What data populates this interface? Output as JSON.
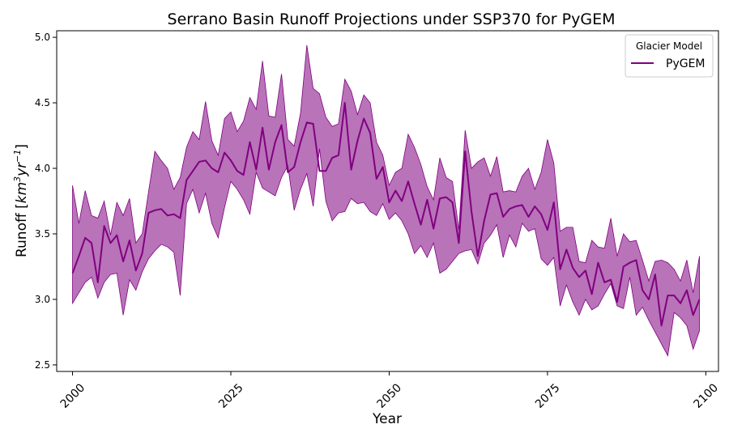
{
  "chart_data": {
    "type": "line",
    "title": "Serrano Basin Runoff Projections under SSP370 for PyGEM",
    "xlabel": "Year",
    "ylabel": "Runoff [km³yr⁻¹]",
    "ylabel_parts": {
      "text": "Runoff [",
      "unit_base": "km",
      "unit_sup1": "3",
      "unit_mid": "yr",
      "unit_sup2": "−1",
      "close": "]"
    },
    "xlim": [
      1997.5,
      2102
    ],
    "ylim": [
      2.45,
      5.05
    ],
    "xticks": [
      2000,
      2025,
      2050,
      2075,
      2100
    ],
    "xtick_labels": [
      "2000",
      "2025",
      "2050",
      "2075",
      "2100"
    ],
    "yticks": [
      2.5,
      3.0,
      3.5,
      4.0,
      4.5,
      5.0
    ],
    "ytick_labels": [
      "2.5",
      "3.0",
      "3.5",
      "4.0",
      "4.5",
      "5.0"
    ],
    "grid": false,
    "legend": {
      "title": "Glacier Model",
      "placement": "top-right",
      "entries": [
        "PyGEM"
      ]
    },
    "colors": {
      "line": "#800080",
      "band": "#800080",
      "band_opacity": 0.55
    },
    "x": [
      2000,
      2001,
      2002,
      2003,
      2004,
      2005,
      2006,
      2007,
      2008,
      2009,
      2010,
      2011,
      2012,
      2013,
      2014,
      2015,
      2016,
      2017,
      2018,
      2019,
      2020,
      2021,
      2022,
      2023,
      2024,
      2025,
      2026,
      2027,
      2028,
      2029,
      2030,
      2031,
      2032,
      2033,
      2034,
      2035,
      2036,
      2037,
      2038,
      2039,
      2040,
      2041,
      2042,
      2043,
      2044,
      2045,
      2046,
      2047,
      2048,
      2049,
      2050,
      2051,
      2052,
      2053,
      2054,
      2055,
      2056,
      2057,
      2058,
      2059,
      2060,
      2061,
      2062,
      2063,
      2064,
      2065,
      2066,
      2067,
      2068,
      2069,
      2070,
      2071,
      2072,
      2073,
      2074,
      2075,
      2076,
      2077,
      2078,
      2079,
      2080,
      2081,
      2082,
      2083,
      2084,
      2085,
      2086,
      2087,
      2088,
      2089,
      2090,
      2091,
      2092,
      2093,
      2094,
      2095,
      2096,
      2097,
      2098,
      2099
    ],
    "series": [
      {
        "name": "PyGEM",
        "mean": [
          3.2,
          3.33,
          3.47,
          3.43,
          3.13,
          3.56,
          3.43,
          3.49,
          3.29,
          3.45,
          3.22,
          3.35,
          3.66,
          3.68,
          3.69,
          3.64,
          3.65,
          3.62,
          3.91,
          3.98,
          4.05,
          4.06,
          4.0,
          3.97,
          4.12,
          4.06,
          3.98,
          3.95,
          4.2,
          3.99,
          4.31,
          3.99,
          4.2,
          4.33,
          3.97,
          4.01,
          4.2,
          4.35,
          4.34,
          3.98,
          3.98,
          4.08,
          4.1,
          4.5,
          3.99,
          4.21,
          4.38,
          4.27,
          3.92,
          4.01,
          3.74,
          3.83,
          3.75,
          3.9,
          3.73,
          3.57,
          3.76,
          3.54,
          3.77,
          3.78,
          3.74,
          3.43,
          4.13,
          3.67,
          3.33,
          3.6,
          3.8,
          3.81,
          3.63,
          3.69,
          3.71,
          3.72,
          3.63,
          3.71,
          3.65,
          3.53,
          3.74,
          3.23,
          3.38,
          3.24,
          3.17,
          3.22,
          3.04,
          3.28,
          3.13,
          3.15,
          2.98,
          3.25,
          3.28,
          3.3,
          3.07,
          3.0,
          3.19,
          2.8,
          3.03,
          3.03,
          2.97,
          3.07,
          2.88,
          3.0
        ],
        "upper": [
          3.87,
          3.58,
          3.83,
          3.64,
          3.62,
          3.75,
          3.49,
          3.74,
          3.64,
          3.77,
          3.43,
          3.5,
          3.82,
          4.13,
          4.06,
          4.0,
          3.84,
          3.93,
          4.16,
          4.28,
          4.22,
          4.51,
          4.21,
          4.1,
          4.38,
          4.43,
          4.28,
          4.36,
          4.54,
          4.45,
          4.82,
          4.4,
          4.39,
          4.72,
          4.22,
          4.17,
          4.42,
          4.94,
          4.61,
          4.57,
          4.39,
          4.32,
          4.34,
          4.68,
          4.59,
          4.41,
          4.56,
          4.5,
          4.2,
          4.1,
          3.87,
          3.97,
          4.0,
          4.26,
          4.16,
          4.03,
          3.86,
          3.76,
          4.08,
          3.93,
          3.9,
          3.53,
          4.29,
          4.0,
          4.05,
          4.08,
          3.94,
          4.09,
          3.82,
          3.83,
          3.82,
          3.94,
          4.0,
          3.84,
          3.97,
          4.22,
          4.04,
          3.52,
          3.55,
          3.55,
          3.29,
          3.28,
          3.45,
          3.4,
          3.39,
          3.62,
          3.33,
          3.5,
          3.44,
          3.45,
          3.3,
          3.14,
          3.29,
          3.3,
          3.28,
          3.23,
          3.14,
          3.3,
          3.05,
          3.33
        ],
        "lower": [
          2.97,
          3.05,
          3.13,
          3.17,
          3.01,
          3.13,
          3.19,
          3.2,
          2.88,
          3.15,
          3.07,
          3.21,
          3.31,
          3.37,
          3.42,
          3.4,
          3.36,
          3.03,
          3.73,
          3.84,
          3.66,
          3.81,
          3.58,
          3.47,
          3.7,
          3.9,
          3.84,
          3.76,
          3.65,
          3.97,
          3.85,
          3.82,
          3.79,
          3.93,
          4.02,
          3.68,
          3.84,
          3.96,
          3.71,
          4.15,
          3.75,
          3.6,
          3.66,
          3.67,
          3.77,
          3.73,
          3.74,
          3.67,
          3.64,
          3.73,
          3.61,
          3.66,
          3.6,
          3.5,
          3.35,
          3.41,
          3.32,
          3.43,
          3.2,
          3.23,
          3.29,
          3.35,
          3.37,
          3.38,
          3.27,
          3.43,
          3.49,
          3.57,
          3.32,
          3.49,
          3.4,
          3.58,
          3.52,
          3.54,
          3.31,
          3.26,
          3.32,
          2.95,
          3.11,
          2.98,
          2.88,
          3.0,
          2.92,
          2.95,
          3.04,
          3.12,
          2.95,
          2.93,
          3.17,
          2.88,
          2.94,
          2.84,
          2.75,
          2.66,
          2.57,
          2.9,
          2.86,
          2.8,
          2.62,
          2.76
        ]
      }
    ]
  }
}
